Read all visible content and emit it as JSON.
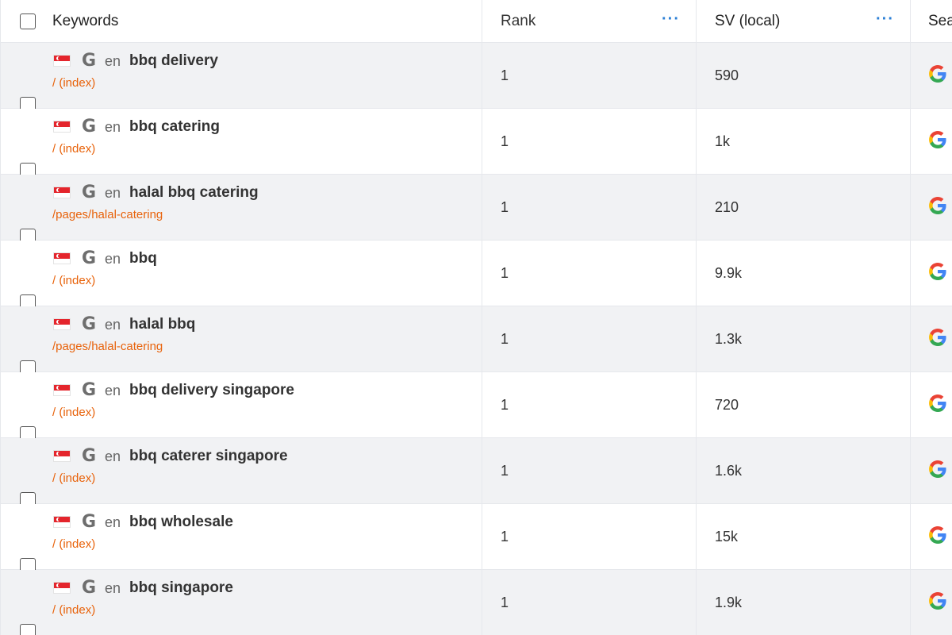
{
  "header": {
    "keywords_label": "Keywords",
    "rank_label": "Rank",
    "sv_label": "SV (local)",
    "search_label": "Sea",
    "more_dots": "···"
  },
  "rows": [
    {
      "lang": "en",
      "keyword": "bbq delivery",
      "url": "/ (index)",
      "rank": "1",
      "sv": "590"
    },
    {
      "lang": "en",
      "keyword": "bbq catering",
      "url": "/ (index)",
      "rank": "1",
      "sv": "1k"
    },
    {
      "lang": "en",
      "keyword": "halal bbq catering",
      "url": "/pages/halal-catering",
      "rank": "1",
      "sv": "210"
    },
    {
      "lang": "en",
      "keyword": "bbq",
      "url": "/ (index)",
      "rank": "1",
      "sv": "9.9k"
    },
    {
      "lang": "en",
      "keyword": "halal bbq",
      "url": "/pages/halal-catering",
      "rank": "1",
      "sv": "1.3k"
    },
    {
      "lang": "en",
      "keyword": "bbq delivery singapore",
      "url": "/ (index)",
      "rank": "1",
      "sv": "720"
    },
    {
      "lang": "en",
      "keyword": "bbq caterer singapore",
      "url": "/ (index)",
      "rank": "1",
      "sv": "1.6k"
    },
    {
      "lang": "en",
      "keyword": "bbq wholesale",
      "url": "/ (index)",
      "rank": "1",
      "sv": "15k"
    },
    {
      "lang": "en",
      "keyword": "bbq singapore",
      "url": "/ (index)",
      "rank": "1",
      "sv": "1.9k"
    }
  ],
  "icons": {
    "flag": "singapore-flag-icon",
    "engine": "google-icon"
  },
  "colors": {
    "url": "#e8620a",
    "dots": "#2b7fd6",
    "alt_row": "#f1f2f4",
    "flag_red": "#e4252c"
  },
  "glyphs": {
    "google_mono": "G"
  }
}
